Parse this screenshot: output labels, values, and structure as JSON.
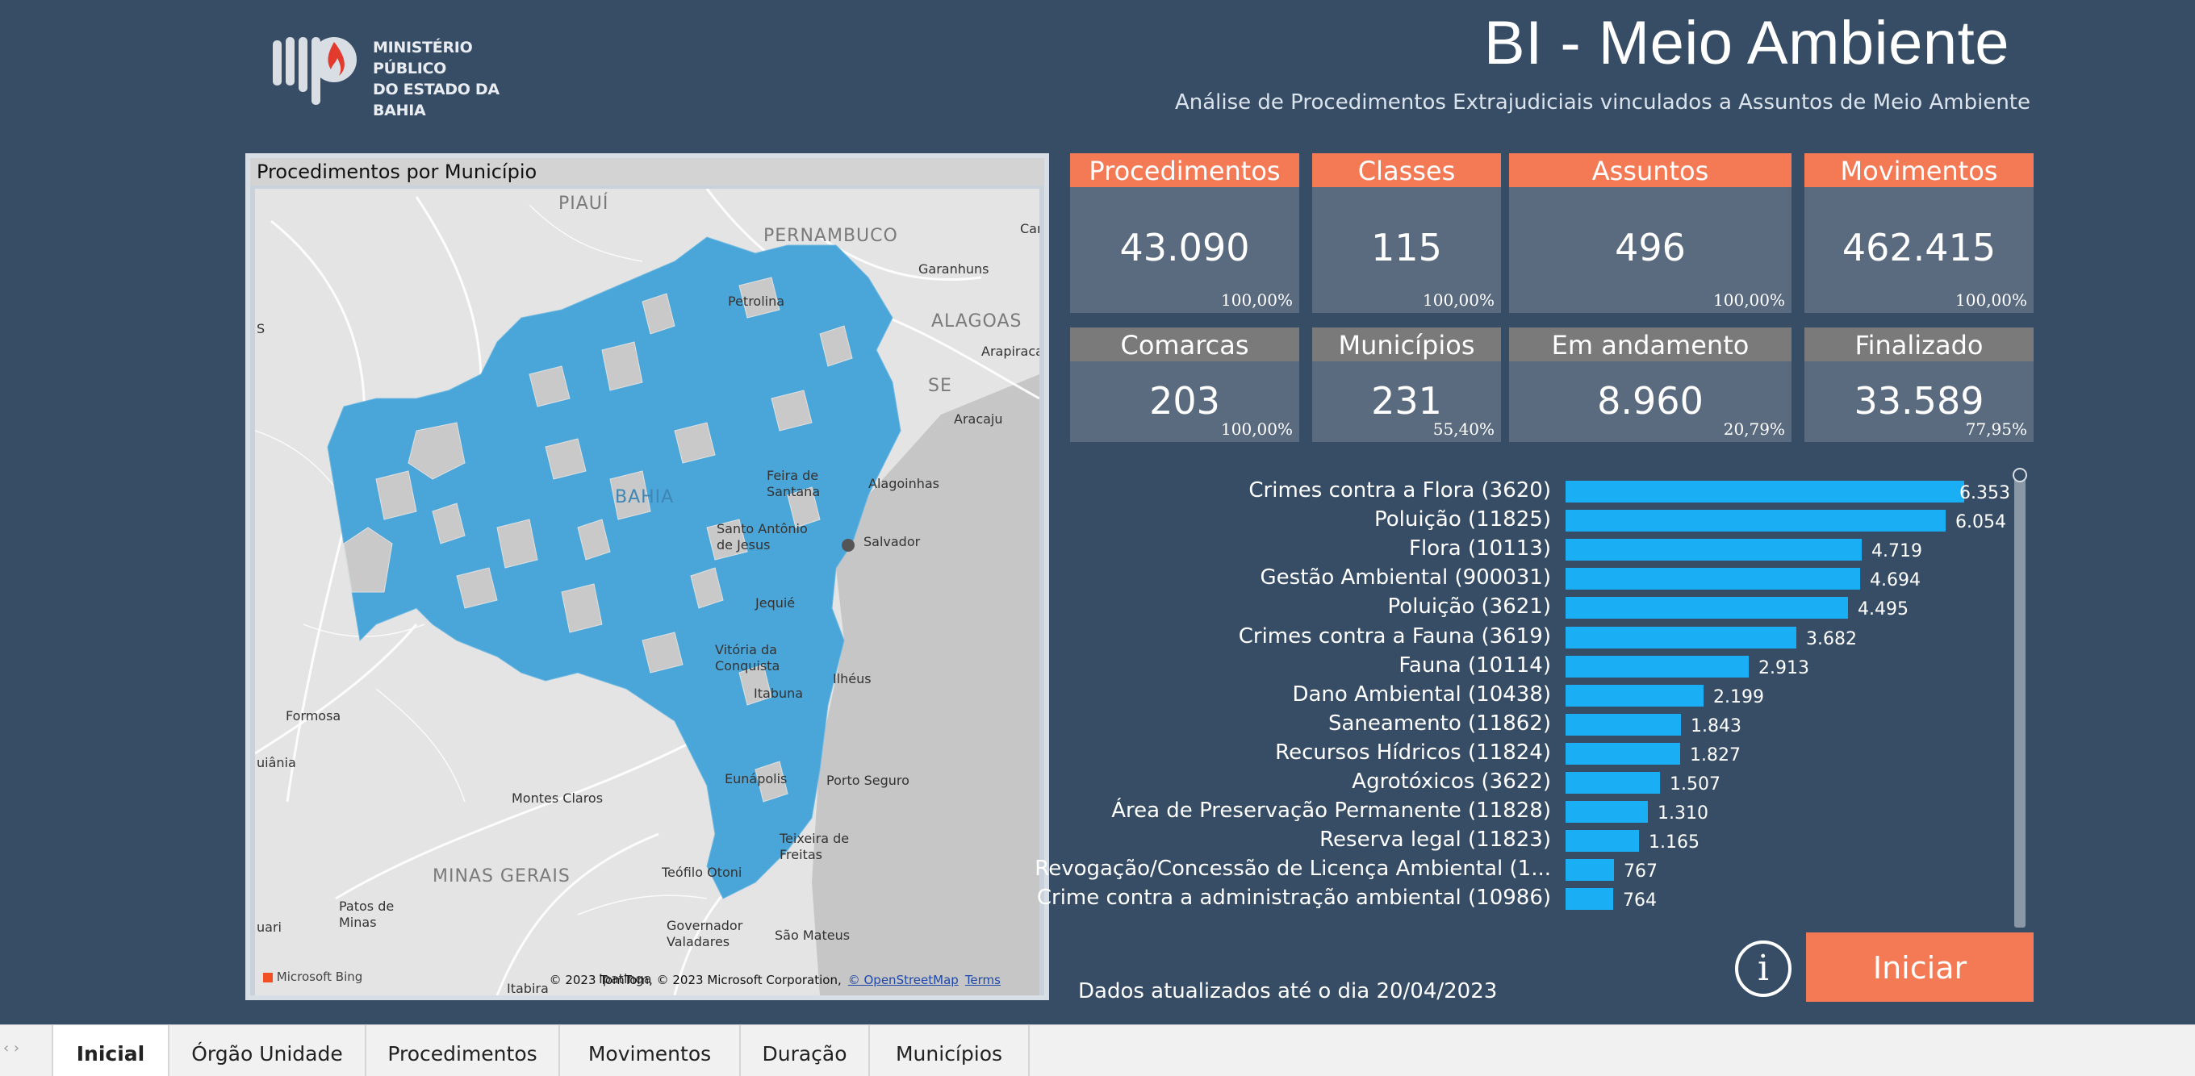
{
  "brand": {
    "name_line1": "MINISTÉRIO PÚBLICO",
    "name_line2": "DO ESTADO DA BAHIA"
  },
  "header": {
    "title": "BI - Meio Ambiente",
    "subtitle": "Análise de Procedimentos Extrajudiciais vinculados a Assuntos de Meio Ambiente"
  },
  "map": {
    "title": "Procedimentos por Município",
    "regions": [
      "PIAUÍ",
      "PERNAMBUCO",
      "ALAGOAS",
      "SE",
      "BAHIA",
      "MINAS GERAIS"
    ],
    "cities": [
      "Petrolina",
      "Garanhuns",
      "Arapiraca",
      "Aracaju",
      "Alagoinhas",
      "Salvador",
      "Feira de Santana",
      "Santo Antônio de Jesus",
      "Jequié",
      "Vitória da Conquista",
      "Itabuna",
      "Ilhéus",
      "Eunápolis",
      "Porto Seguro",
      "Teixeira de Freitas",
      "Formosa",
      "Montes Claros",
      "Teófilo Otoni",
      "Governador Valadares",
      "São Mateus",
      "Patos de Minas",
      "Itabira",
      "Ipatinga",
      "Car",
      "S",
      "uari",
      "uiânia"
    ],
    "attribution": "© 2023 TomTom, © 2023 Microsoft Corporation,",
    "attribution_link": "© OpenStreetMap",
    "terms": "Terms",
    "provider": "Microsoft Bing",
    "fill_color": "#4aa5d8"
  },
  "kpis": [
    {
      "label": "Procedimentos",
      "value": "43.090",
      "pct": "100,00%",
      "style": "orange"
    },
    {
      "label": "Classes",
      "value": "115",
      "pct": "100,00%",
      "style": "orange"
    },
    {
      "label": "Assuntos",
      "value": "496",
      "pct": "100,00%",
      "style": "orange"
    },
    {
      "label": "Movimentos",
      "value": "462.415",
      "pct": "100,00%",
      "style": "orange"
    },
    {
      "label": "Comarcas",
      "value": "203",
      "pct": "100,00%",
      "style": "gray"
    },
    {
      "label": "Municípios",
      "value": "231",
      "pct": "55,40%",
      "style": "gray"
    },
    {
      "label": "Em andamento",
      "value": "8.960",
      "pct": "20,79%",
      "style": "gray"
    },
    {
      "label": "Finalizado",
      "value": "33.589",
      "pct": "77,95%",
      "style": "gray"
    }
  ],
  "chart_data": {
    "type": "bar",
    "orientation": "horizontal",
    "categories": [
      "Crimes contra a Flora (3620)",
      "Poluição (11825)",
      "Flora (10113)",
      "Gestão Ambiental (900031)",
      "Poluição (3621)",
      "Crimes contra a Fauna (3619)",
      "Fauna (10114)",
      "Dano Ambiental (10438)",
      "Saneamento (11862)",
      "Recursos Hídricos (11824)",
      "Agrotóxicos (3622)",
      "Área de Preservação Permanente (11828)",
      "Reserva legal (11823)",
      "Revogação/Concessão de Licença Ambiental (1...",
      "Crime contra a administração ambiental (10986)"
    ],
    "values": [
      6353,
      6054,
      4719,
      4694,
      4495,
      3682,
      2913,
      2199,
      1843,
      1827,
      1507,
      1310,
      1165,
      767,
      764
    ],
    "labels": [
      "6.353",
      "6.054",
      "4.719",
      "4.694",
      "4.495",
      "3.682",
      "2.913",
      "2.199",
      "1.843",
      "1.827",
      "1.507",
      "1.310",
      "1.165",
      "767",
      "764"
    ],
    "color": "#1aaef5",
    "xlim": [
      0,
      6353
    ]
  },
  "footer": {
    "updated": "Dados atualizados até o dia 20/04/2023",
    "info_symbol": "i",
    "start_label": "Iniciar"
  },
  "tabs": [
    {
      "label": "Inicial",
      "active": true
    },
    {
      "label": "Órgão Unidade",
      "active": false
    },
    {
      "label": "Procedimentos",
      "active": false
    },
    {
      "label": "Movimentos",
      "active": false
    },
    {
      "label": "Duração",
      "active": false
    },
    {
      "label": "Municípios",
      "active": false
    }
  ],
  "colors": {
    "background": "#374d66",
    "accent": "#f47a55",
    "kpi_gray": "#7a7a7a",
    "bar": "#1aaef5"
  }
}
